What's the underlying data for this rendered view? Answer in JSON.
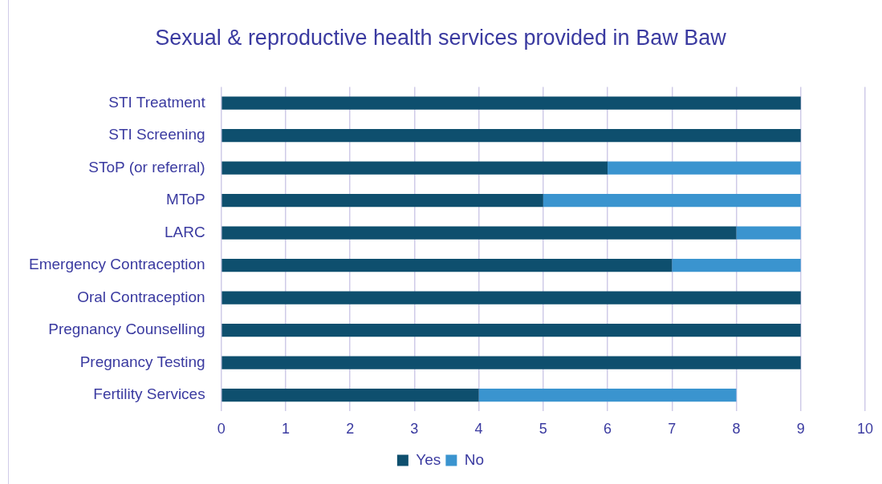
{
  "chart_data": {
    "type": "bar",
    "orientation": "horizontal",
    "stacked": true,
    "title": "Sexual & reproductive health services provided in Baw Baw",
    "categories": [
      "STI Treatment",
      "STI Screening",
      "SToP (or referral)",
      "MToP",
      "LARC",
      "Emergency Contraception",
      "Oral Contraception",
      "Pregnancy Counselling",
      "Pregnancy Testing",
      "Fertility Services"
    ],
    "series": [
      {
        "name": "Yes",
        "color": "#0e4f6e",
        "values": [
          9,
          9,
          6,
          5,
          8,
          7,
          9,
          9,
          9,
          4
        ]
      },
      {
        "name": "No",
        "color": "#3a94cf",
        "values": [
          0,
          0,
          3,
          4,
          1,
          2,
          0,
          0,
          0,
          4
        ]
      }
    ],
    "xlim": [
      0,
      10
    ],
    "xticks": [
      0,
      1,
      2,
      3,
      4,
      5,
      6,
      7,
      8,
      9,
      10
    ],
    "grid": "x",
    "legend": "bottom"
  }
}
